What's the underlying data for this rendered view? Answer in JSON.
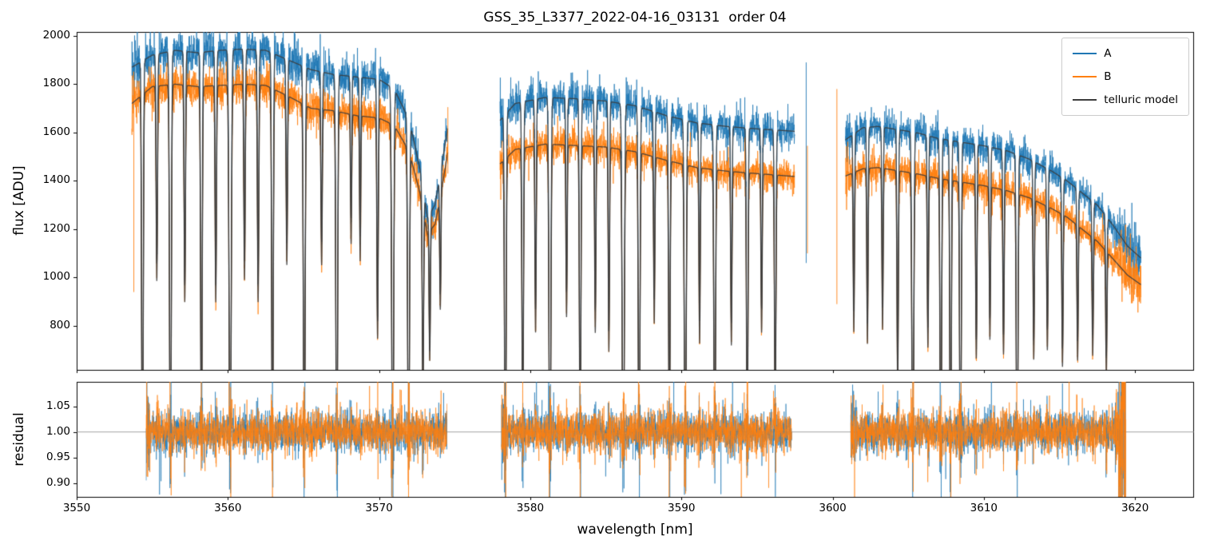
{
  "chart_data": {
    "type": "line",
    "title": "GSS_35_L3377_2022-04-16_03131  order 04",
    "xlabel": "wavelength [nm]",
    "ylabel_top": "flux [ADU]",
    "ylabel_bottom": "residual",
    "x_range": [
      3550,
      3623.9
    ],
    "flux_y_range": [
      618,
      2016
    ],
    "residual_y_range": [
      0.873,
      1.098
    ],
    "x_tick_labels": [
      "3550",
      "3560",
      "3570",
      "3580",
      "3590",
      "3600",
      "3610",
      "3620"
    ],
    "flux_tick_labels": [
      "800",
      "1000",
      "1200",
      "1400",
      "1600",
      "1800",
      "2000"
    ],
    "residual_tick_labels": [
      "0.90",
      "0.95",
      "1.00",
      "1.05"
    ],
    "residual_baseline": 1.0,
    "legend": [
      {
        "label": "A",
        "color": "#1f77b4"
      },
      {
        "label": "B",
        "color": "#ff7f0e"
      },
      {
        "label": "telluric model",
        "color": "#3d3d3d"
      }
    ],
    "segments": [
      {
        "x_start": 3553.65,
        "x_end": 3574.55,
        "continuum_A": [
          [
            3553.65,
            1870
          ],
          [
            3555,
            1920
          ],
          [
            3556.5,
            1940
          ],
          [
            3558,
            1930
          ],
          [
            3559.5,
            1940
          ],
          [
            3561,
            1945
          ],
          [
            3562.5,
            1940
          ],
          [
            3564,
            1900
          ],
          [
            3565.5,
            1860
          ],
          [
            3567,
            1840
          ],
          [
            3568.5,
            1830
          ],
          [
            3570,
            1820
          ],
          [
            3571,
            1780
          ],
          [
            3572,
            1650
          ],
          [
            3572.7,
            1450
          ],
          [
            3573.2,
            1250
          ],
          [
            3573.7,
            1300
          ],
          [
            3574.1,
            1450
          ],
          [
            3574.55,
            1620
          ]
        ],
        "continuum_B": [
          [
            3553.65,
            1720
          ],
          [
            3555,
            1790
          ],
          [
            3556.5,
            1800
          ],
          [
            3558,
            1790
          ],
          [
            3559.5,
            1795
          ],
          [
            3561,
            1800
          ],
          [
            3562.5,
            1795
          ],
          [
            3564,
            1750
          ],
          [
            3565.5,
            1700
          ],
          [
            3567,
            1690
          ],
          [
            3568.5,
            1670
          ],
          [
            3570,
            1660
          ],
          [
            3571,
            1630
          ],
          [
            3572,
            1520
          ],
          [
            3572.7,
            1350
          ],
          [
            3573.2,
            1180
          ],
          [
            3573.7,
            1220
          ],
          [
            3574.1,
            1350
          ],
          [
            3574.55,
            1520
          ]
        ]
      },
      {
        "x_start": 3578.0,
        "x_end": 3597.5,
        "continuum_A": [
          [
            3578,
            1650
          ],
          [
            3579,
            1720
          ],
          [
            3581,
            1745
          ],
          [
            3583,
            1740
          ],
          [
            3585,
            1730
          ],
          [
            3587,
            1710
          ],
          [
            3589,
            1670
          ],
          [
            3591,
            1640
          ],
          [
            3593,
            1625
          ],
          [
            3595,
            1615
          ],
          [
            3597.5,
            1605
          ]
        ],
        "continuum_B": [
          [
            3578,
            1470
          ],
          [
            3579,
            1530
          ],
          [
            3581,
            1552
          ],
          [
            3583,
            1546
          ],
          [
            3585,
            1540
          ],
          [
            3587,
            1520
          ],
          [
            3589,
            1485
          ],
          [
            3591,
            1455
          ],
          [
            3593,
            1440
          ],
          [
            3595,
            1430
          ],
          [
            3597.5,
            1418
          ]
        ]
      },
      {
        "x_start": 3600.85,
        "x_end": 3620.4,
        "continuum_A": [
          [
            3600.85,
            1570
          ],
          [
            3602,
            1620
          ],
          [
            3603,
            1625
          ],
          [
            3604,
            1615
          ],
          [
            3605.5,
            1600
          ],
          [
            3607,
            1575
          ],
          [
            3608.5,
            1560
          ],
          [
            3610,
            1545
          ],
          [
            3611.5,
            1525
          ],
          [
            3613,
            1490
          ],
          [
            3614.5,
            1440
          ],
          [
            3615.5,
            1400
          ],
          [
            3616.5,
            1350
          ],
          [
            3617.5,
            1300
          ],
          [
            3618.5,
            1220
          ],
          [
            3619.5,
            1130
          ],
          [
            3620.4,
            1080
          ]
        ],
        "continuum_B": [
          [
            3600.85,
            1420
          ],
          [
            3602,
            1450
          ],
          [
            3603,
            1455
          ],
          [
            3604,
            1445
          ],
          [
            3605.5,
            1430
          ],
          [
            3607,
            1410
          ],
          [
            3608.5,
            1395
          ],
          [
            3610,
            1380
          ],
          [
            3611.5,
            1360
          ],
          [
            3613,
            1330
          ],
          [
            3614.5,
            1285
          ],
          [
            3615.5,
            1250
          ],
          [
            3616.5,
            1200
          ],
          [
            3617.5,
            1150
          ],
          [
            3618.5,
            1080
          ],
          [
            3619.5,
            1010
          ],
          [
            3620.4,
            970
          ]
        ]
      }
    ],
    "residual_segments": [
      [
        3554.6,
        3574.5
      ],
      [
        3578.1,
        3597.3
      ],
      [
        3601.2,
        3619.4
      ]
    ],
    "telluric_lines": [
      [
        3554.35,
        0.985,
        0.05
      ],
      [
        3555.3,
        0.45,
        0.045
      ],
      [
        3556.2,
        0.985,
        0.055
      ],
      [
        3557.15,
        0.5,
        0.045
      ],
      [
        3558.25,
        0.88,
        0.05
      ],
      [
        3559.2,
        0.5,
        0.045
      ],
      [
        3560.15,
        0.99,
        0.065
      ],
      [
        3561.1,
        0.45,
        0.045
      ],
      [
        3562.0,
        0.5,
        0.045
      ],
      [
        3562.95,
        0.92,
        0.05
      ],
      [
        3563.9,
        0.4,
        0.045
      ],
      [
        3565.05,
        0.985,
        0.055
      ],
      [
        3566.2,
        0.38,
        0.045
      ],
      [
        3567.2,
        0.975,
        0.055
      ],
      [
        3568.15,
        0.32,
        0.04
      ],
      [
        3568.75,
        0.36,
        0.04
      ],
      [
        3569.9,
        0.55,
        0.045
      ],
      [
        3570.9,
        0.99,
        0.06
      ],
      [
        3571.95,
        0.985,
        0.055
      ],
      [
        3572.9,
        0.6,
        0.045
      ],
      [
        3573.35,
        0.45,
        0.04
      ],
      [
        3574.05,
        0.35,
        0.04
      ],
      [
        3578.35,
        0.985,
        0.05
      ],
      [
        3579.5,
        0.78,
        0.05
      ],
      [
        3580.35,
        0.5,
        0.042
      ],
      [
        3581.3,
        0.985,
        0.058
      ],
      [
        3582.4,
        0.46,
        0.042
      ],
      [
        3583.3,
        0.86,
        0.048
      ],
      [
        3584.3,
        0.5,
        0.042
      ],
      [
        3585.2,
        0.55,
        0.042
      ],
      [
        3586.15,
        0.99,
        0.065
      ],
      [
        3587.2,
        0.985,
        0.052
      ],
      [
        3588.2,
        0.46,
        0.042
      ],
      [
        3589.2,
        0.82,
        0.048
      ],
      [
        3590.25,
        0.985,
        0.058
      ],
      [
        3591.2,
        0.5,
        0.042
      ],
      [
        3592.2,
        0.975,
        0.052
      ],
      [
        3593.3,
        0.5,
        0.042
      ],
      [
        3594.35,
        0.82,
        0.048
      ],
      [
        3595.3,
        0.46,
        0.042
      ],
      [
        3596.2,
        0.72,
        0.048
      ],
      [
        3601.4,
        0.46,
        0.042
      ],
      [
        3602.3,
        0.5,
        0.042
      ],
      [
        3603.3,
        0.46,
        0.042
      ],
      [
        3604.3,
        0.62,
        0.046
      ],
      [
        3605.3,
        0.985,
        0.058
      ],
      [
        3606.3,
        0.5,
        0.042
      ],
      [
        3607.15,
        0.985,
        0.05
      ],
      [
        3607.8,
        0.975,
        0.048
      ],
      [
        3608.45,
        0.985,
        0.05
      ],
      [
        3609.5,
        0.52,
        0.042
      ],
      [
        3610.4,
        0.46,
        0.042
      ],
      [
        3611.3,
        0.5,
        0.042
      ],
      [
        3612.2,
        0.975,
        0.052
      ],
      [
        3613.3,
        0.5,
        0.042
      ],
      [
        3614.2,
        0.46,
        0.042
      ],
      [
        3615.2,
        0.5,
        0.042
      ],
      [
        3616.2,
        0.46,
        0.042
      ],
      [
        3617.2,
        0.42,
        0.042
      ],
      [
        3618.1,
        0.46,
        0.042
      ]
    ],
    "edge_spikes": [
      {
        "series": "B",
        "x": 3553.78,
        "y0": 940,
        "y1": 1700
      },
      {
        "series": "B",
        "x": 3574.55,
        "y0": 1430,
        "y1": 1705
      },
      {
        "series": "A",
        "x": 3598.25,
        "y0": 1060,
        "y1": 1890
      },
      {
        "series": "B",
        "x": 3598.33,
        "y0": 1100,
        "y1": 1545
      },
      {
        "series": "B",
        "x": 3600.28,
        "y0": 890,
        "y1": 1780
      }
    ],
    "noise": {
      "flux_rel_sigma": 0.021,
      "flux_add_sigma": 8,
      "residual_sigma": 0.019
    }
  }
}
